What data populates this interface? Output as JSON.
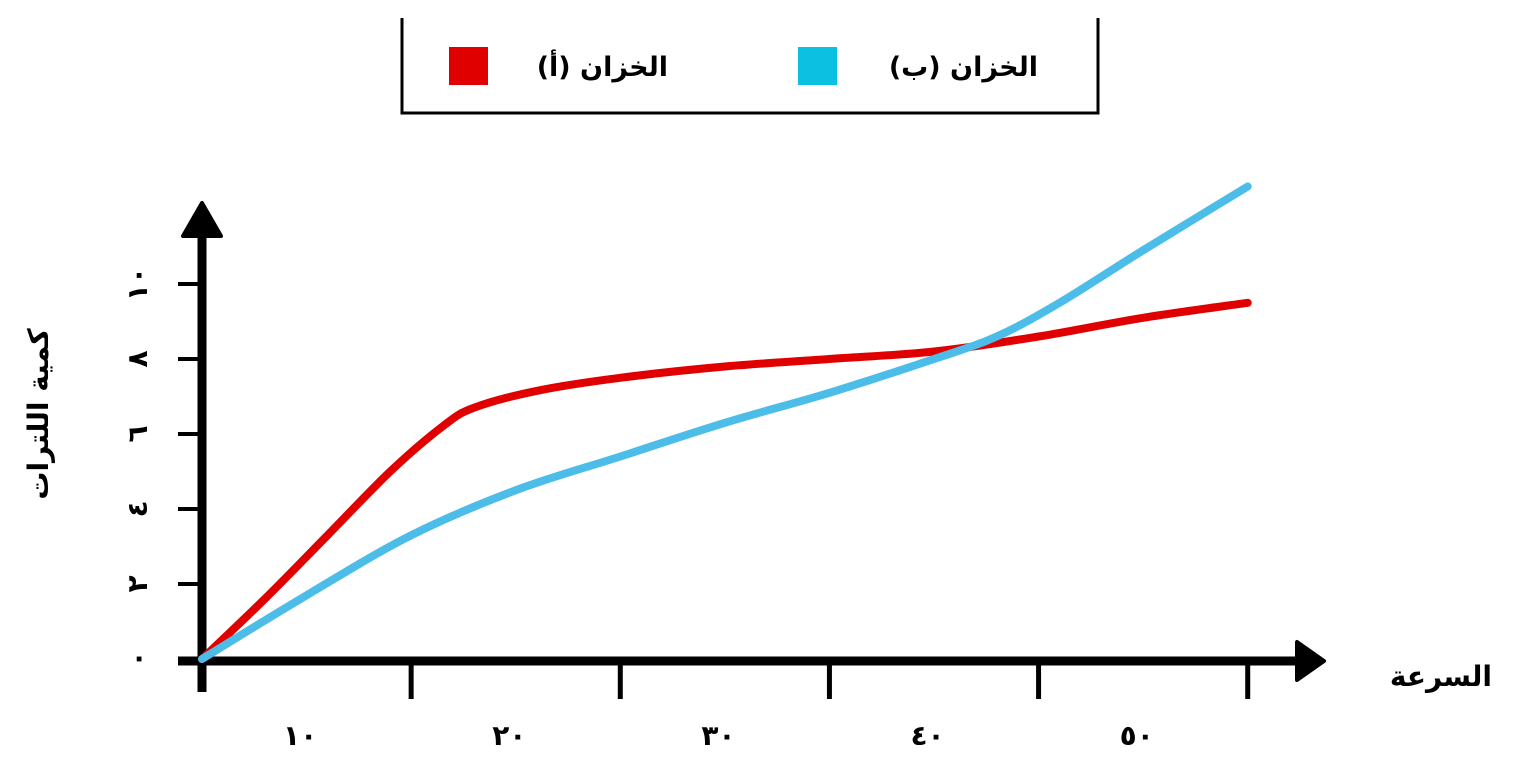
{
  "chart_data": {
    "type": "line",
    "xlabel": "السرعة",
    "ylabel": "كمية اللترات",
    "x_ticks": [
      {
        "value": 10,
        "label": "١٠"
      },
      {
        "value": 20,
        "label": "٢٠"
      },
      {
        "value": 30,
        "label": "٣٠"
      },
      {
        "value": 40,
        "label": "٤٠"
      },
      {
        "value": 50,
        "label": "٥٠"
      }
    ],
    "y_ticks": [
      {
        "value": 0,
        "label": "٠"
      },
      {
        "value": 2,
        "label": "٢"
      },
      {
        "value": 4,
        "label": "٤"
      },
      {
        "value": 6,
        "label": "٦"
      },
      {
        "value": 8,
        "label": "٨"
      },
      {
        "value": 10,
        "label": "١٠"
      }
    ],
    "xlim": [
      0,
      52.5
    ],
    "ylim": [
      0,
      12
    ],
    "legend_position": "top",
    "series": [
      {
        "name": "الخزان (أ)",
        "color": "#e00000",
        "x": [
          0,
          3,
          6,
          9,
          11.5,
          13,
          16,
          20,
          25,
          30,
          35,
          40,
          45,
          50
        ],
        "y": [
          0,
          1.6,
          3.3,
          5.0,
          6.2,
          6.7,
          7.15,
          7.5,
          7.8,
          8.0,
          8.2,
          8.6,
          9.1,
          9.5
        ]
      },
      {
        "name": "الخزان (ب)",
        "color": "#4bbde8",
        "x": [
          0,
          5,
          10,
          15,
          20,
          25,
          30,
          35,
          38,
          41,
          45,
          50
        ],
        "y": [
          0,
          1.7,
          3.3,
          4.5,
          5.4,
          6.3,
          7.1,
          8.0,
          8.6,
          9.5,
          10.9,
          12.6
        ]
      }
    ]
  }
}
